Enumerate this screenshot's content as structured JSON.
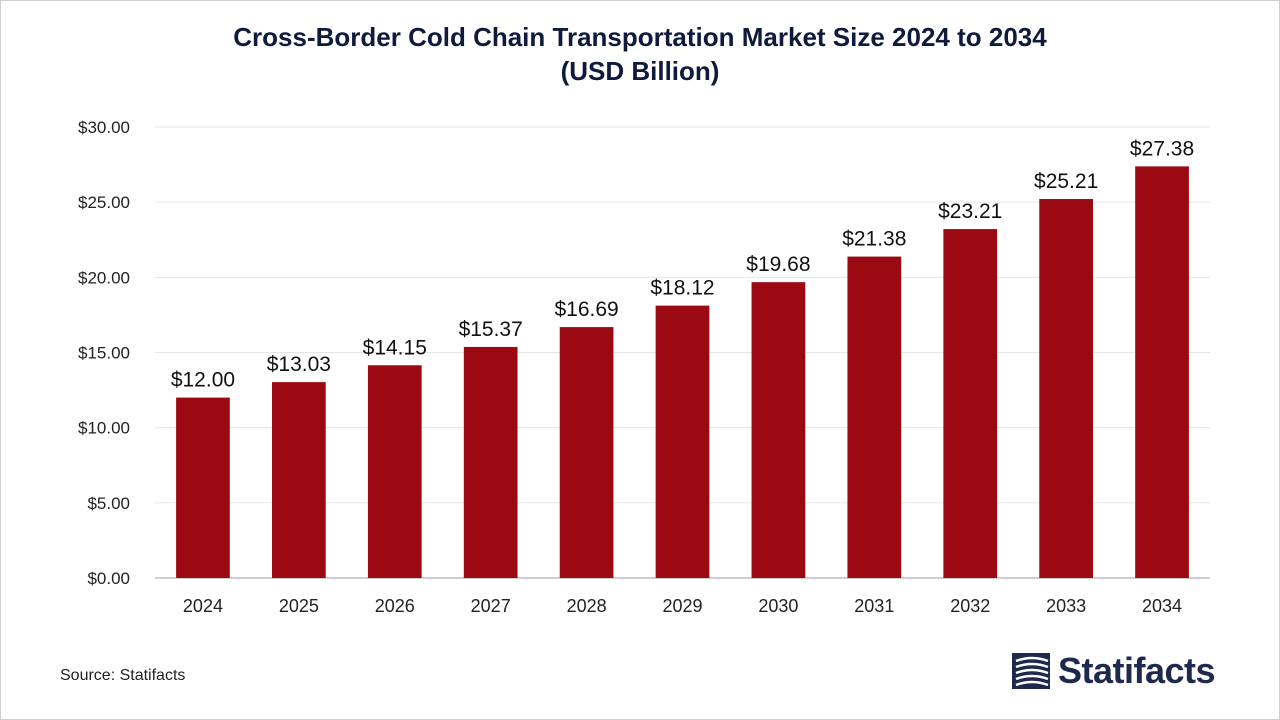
{
  "chart_data": {
    "type": "bar",
    "title_line1": "Cross-Border Cold Chain Transportation Market Size 2024 to 2034",
    "title_line2": "(USD Billion)",
    "categories": [
      "2024",
      "2025",
      "2026",
      "2027",
      "2028",
      "2029",
      "2030",
      "2031",
      "2032",
      "2033",
      "2034"
    ],
    "values": [
      12.0,
      13.03,
      14.15,
      15.37,
      16.69,
      18.12,
      19.68,
      21.38,
      23.21,
      25.21,
      27.38
    ],
    "data_labels": [
      "$12.00",
      "$13.03",
      "$14.15",
      "$15.37",
      "$16.69",
      "$18.12",
      "$19.68",
      "$21.38",
      "$23.21",
      "$25.21",
      "$27.38"
    ],
    "ylim": [
      0,
      30
    ],
    "y_ticks": [
      0,
      5,
      10,
      15,
      20,
      25,
      30
    ],
    "y_tick_labels": [
      "$0.00",
      "$5.00",
      "$10.00",
      "$15.00",
      "$20.00",
      "$25.00",
      "$30.00"
    ],
    "xlabel": "",
    "ylabel": "",
    "grid": true,
    "bar_color": "#9b0a13"
  },
  "source": "Source: Statifacts",
  "brand": {
    "name": "Statifacts",
    "color": "#1d2a4d"
  }
}
